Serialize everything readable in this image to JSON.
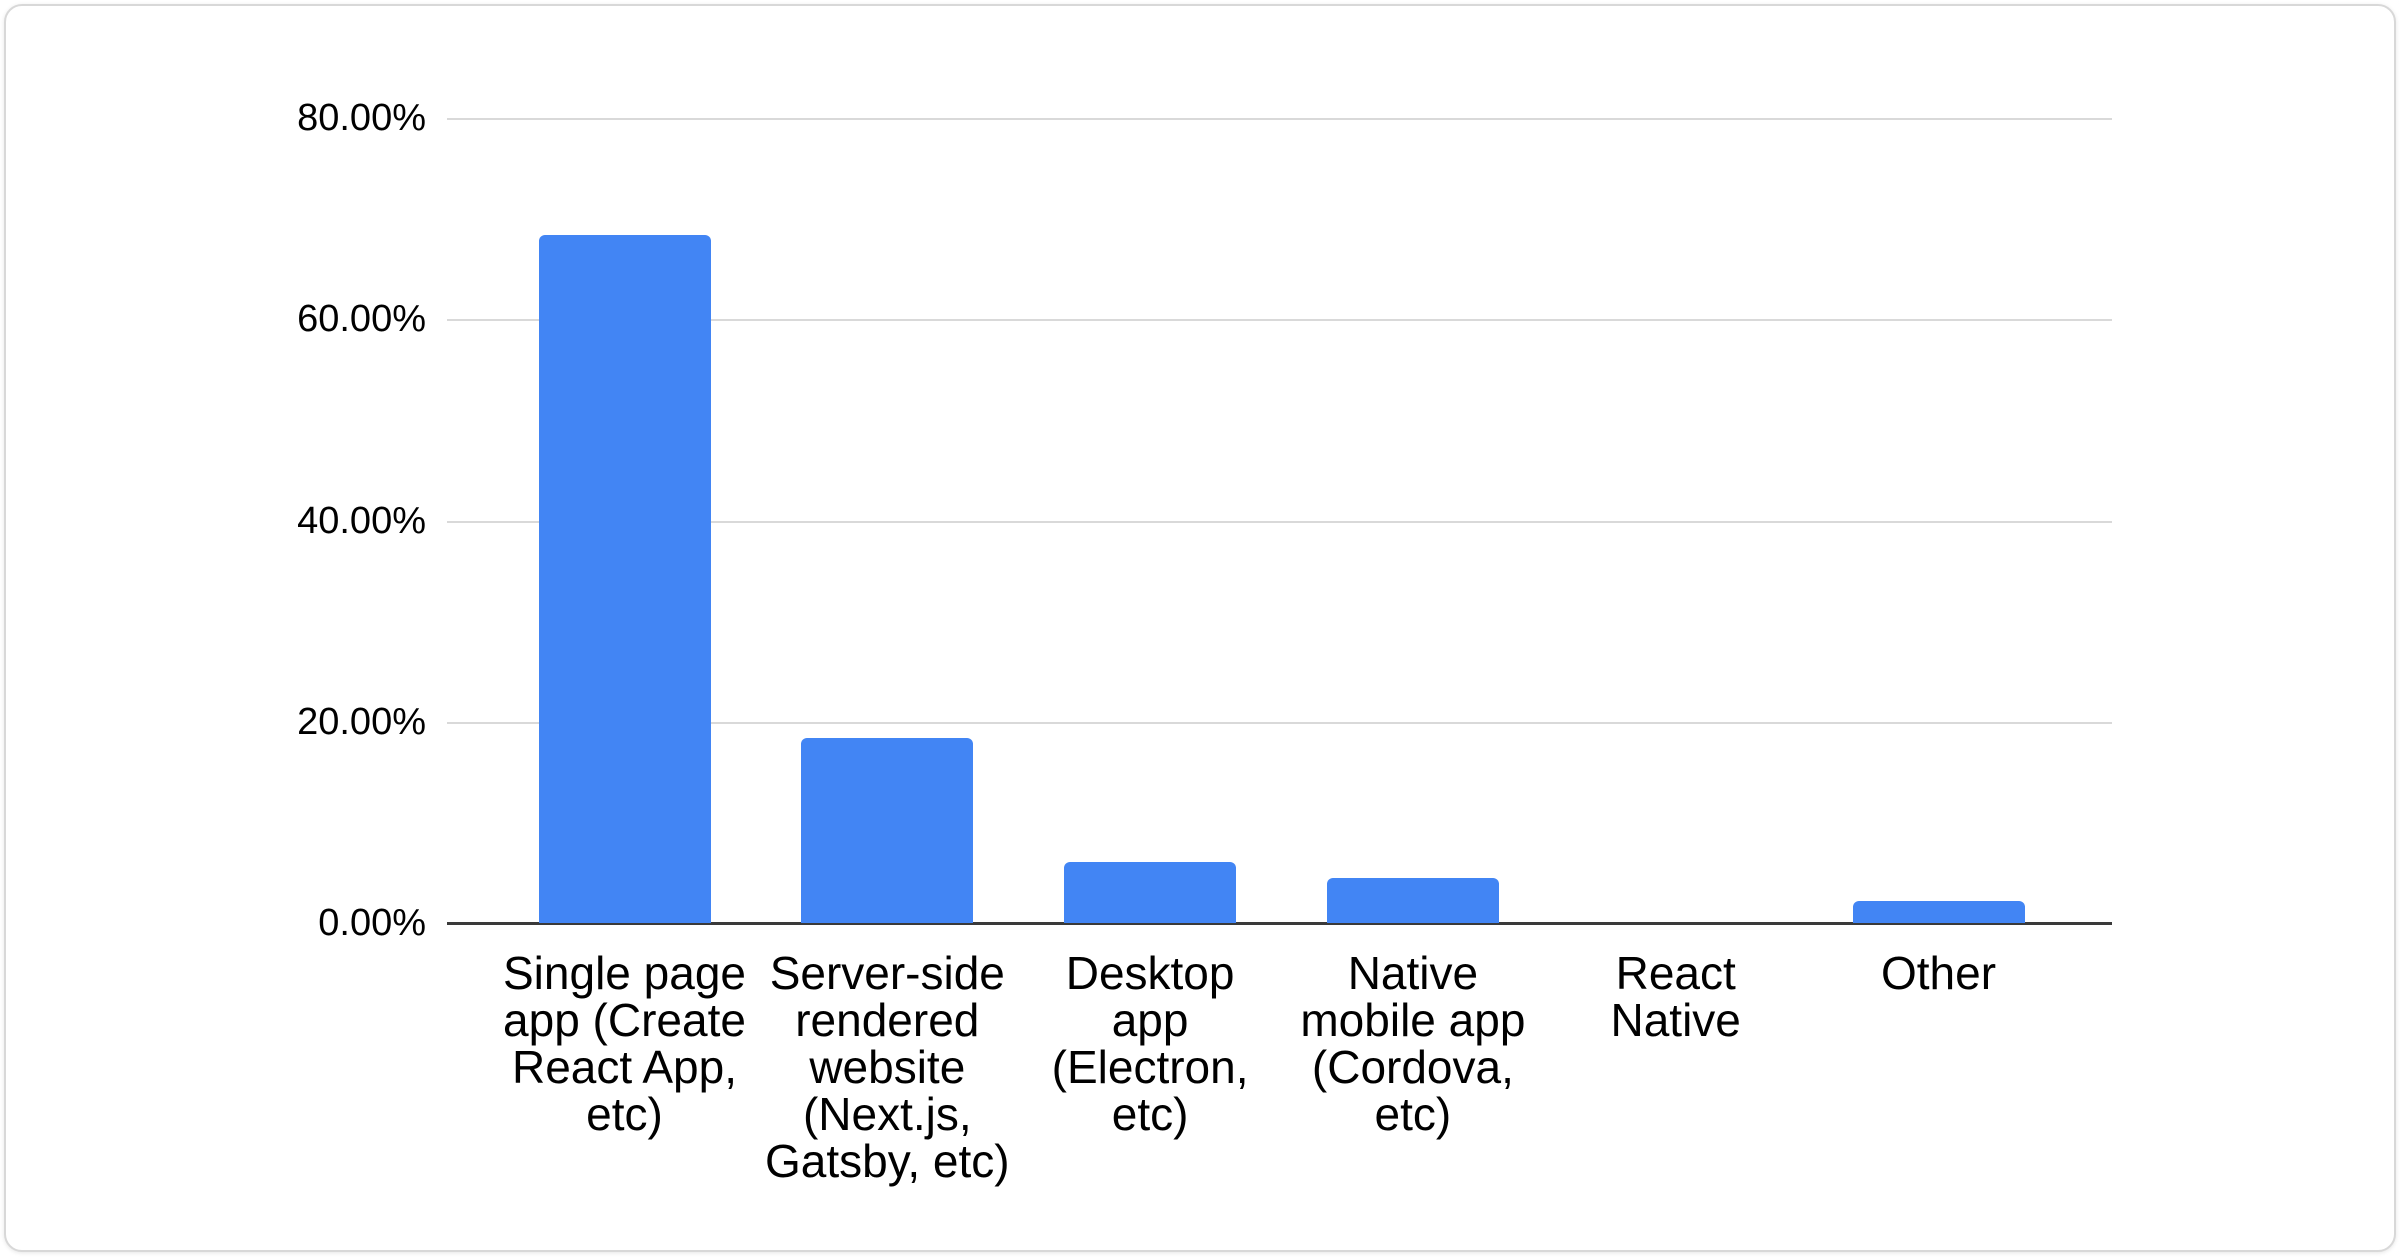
{
  "chart_data": {
    "type": "bar",
    "categories": [
      "Single page app (Create React App, etc)",
      "Server-side rendered website (Next.js, Gatsby, etc)",
      "Desktop app (Electron, etc)",
      "Native mobile app (Cordova, etc)",
      "React Native",
      "Other"
    ],
    "category_lines": [
      [
        "Single page",
        "app (Create",
        "React App,",
        "etc)"
      ],
      [
        "Server-side",
        "rendered",
        "website",
        "(Next.js,",
        "Gatsby, etc)"
      ],
      [
        "Desktop",
        "app",
        "(Electron,",
        "etc)"
      ],
      [
        "Native",
        "mobile app",
        "(Cordova,",
        "etc)"
      ],
      [
        "React",
        "Native"
      ],
      [
        "Other"
      ]
    ],
    "values": [
      68.4,
      18.4,
      6.1,
      4.5,
      0,
      2.2
    ],
    "value_unit": "%",
    "y_ticks": [
      "80.00%",
      "60.00%",
      "40.00%",
      "20.00%",
      "0.00%"
    ],
    "ylim": [
      0,
      80
    ],
    "grid": true,
    "legend": "none",
    "bar_color": "#4285f4",
    "axis_color": "#3a3a3a",
    "gridline_color": "#d9d9d9",
    "text_color": "#000000"
  }
}
